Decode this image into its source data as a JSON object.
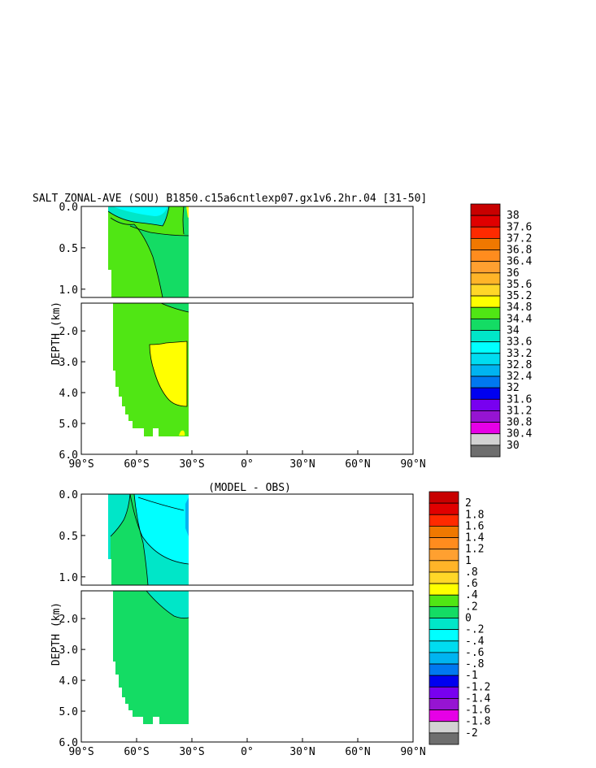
{
  "chart_data": [
    {
      "type": "contour",
      "title": "SALT ZONAL-AVE (SOU) B1850.c15a6cntlexp07.gx1v6.2hr.04 [31-50]",
      "xlabel": "",
      "ylabel": "DEPTH (km)",
      "x_ticks": [
        "90°S",
        "60°S",
        "30°S",
        "0°",
        "30°N",
        "60°N",
        "90°N"
      ],
      "y_ticks_top": [
        "0.0",
        "0.5",
        "1.0"
      ],
      "y_ticks_bottom": [
        "2.0",
        "3.0",
        "4.0",
        "5.0",
        "6.0"
      ],
      "xlim": [
        -90,
        90
      ],
      "ylim": [
        6.0,
        0.0
      ],
      "colorbar": {
        "levels": [
          "38",
          "37.6",
          "37.2",
          "36.8",
          "36.4",
          "36",
          "35.6",
          "35.2",
          "34.8",
          "34.4",
          "34",
          "33.6",
          "33.2",
          "32.8",
          "32.4",
          "32",
          "31.6",
          "31.2",
          "30.8",
          "30.4",
          "30"
        ],
        "colors": [
          "#c80000",
          "#e00000",
          "#ff2a00",
          "#f07800",
          "#ff8c1e",
          "#ffa030",
          "#ffb428",
          "#ffd728",
          "#ffff00",
          "#50e614",
          "#14dc64",
          "#00e6c8",
          "#00ffff",
          "#00dcf0",
          "#00b4f0",
          "#0078f0",
          "#0000f0",
          "#7800f0",
          "#9614d2",
          "#e600e6",
          "#d2d2d2",
          "#6e6e6e"
        ]
      },
      "field_summary": [
        {
          "region": "surface band 79°S–52°S",
          "value_range": [
            33.6,
            34.0
          ]
        },
        {
          "region": "upper ocean 80°S–35°S",
          "value_range": [
            34.0,
            34.4
          ]
        },
        {
          "region": "intermediate/deep 80°S–35°S",
          "value_range": [
            34.4,
            34.8
          ]
        },
        {
          "region": "deep core 45°S–35°S, 2.5–4.5 km",
          "value_range": [
            34.8,
            35.2
          ]
        },
        {
          "region": "surface 34°S",
          "value_range": [
            35.2,
            35.6
          ]
        }
      ]
    },
    {
      "type": "contour",
      "title": "(MODEL - OBS)",
      "xlabel": "",
      "ylabel": "DEPTH (km)",
      "x_ticks": [
        "90°S",
        "60°S",
        "30°S",
        "0°",
        "30°N",
        "60°N",
        "90°N"
      ],
      "y_ticks_top": [
        "0.0",
        "0.5",
        "1.0"
      ],
      "y_ticks_bottom": [
        "2.0",
        "3.0",
        "4.0",
        "5.0",
        "6.0"
      ],
      "xlim": [
        -90,
        90
      ],
      "ylim": [
        6.0,
        0.0
      ],
      "colorbar": {
        "levels": [
          "2",
          "1.8",
          "1.6",
          "1.4",
          "1.2",
          "1",
          ".8",
          ".6",
          ".4",
          ".2",
          "0",
          "-.2",
          "-.4",
          "-.6",
          "-.8",
          "-1",
          "-1.2",
          "-1.4",
          "-1.6",
          "-1.8",
          "-2"
        ],
        "colors": [
          "#c80000",
          "#e00000",
          "#ff2a00",
          "#f07800",
          "#ff8c1e",
          "#ffa030",
          "#ffb428",
          "#ffd728",
          "#ffff00",
          "#50e614",
          "#14dc64",
          "#00e6c8",
          "#00ffff",
          "#00dcf0",
          "#00b4f0",
          "#0078f0",
          "#0000f0",
          "#7800f0",
          "#9614d2",
          "#e600e6",
          "#d2d2d2",
          "#6e6e6e"
        ]
      },
      "field_summary": [
        {
          "region": "upper ocean 78°S–35°S",
          "value_range": [
            -0.2,
            0.0
          ]
        },
        {
          "region": "deep 80°S–35°S",
          "value_range": [
            0.0,
            0.2
          ]
        },
        {
          "region": "surface 34°S",
          "value_range": [
            -0.4,
            -0.2
          ]
        }
      ]
    }
  ]
}
